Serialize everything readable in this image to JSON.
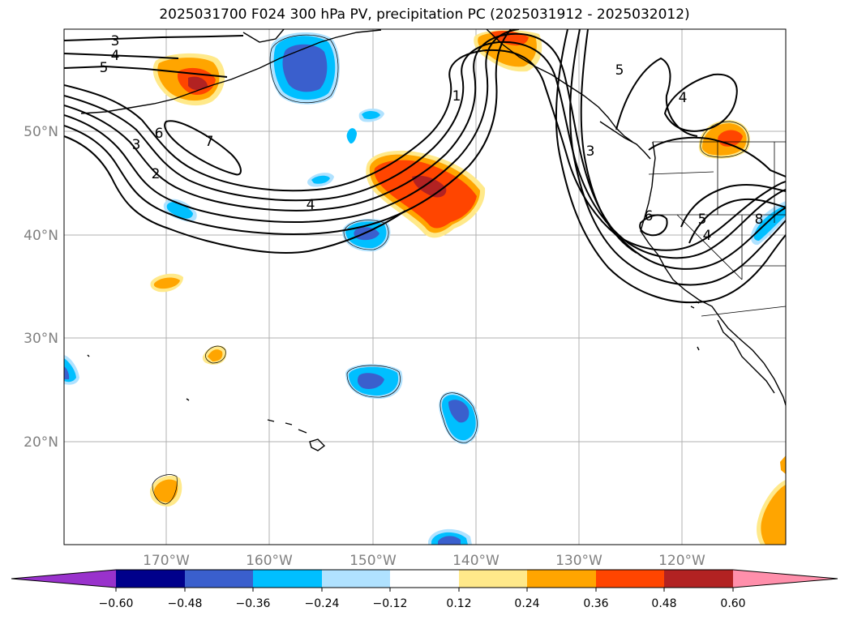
{
  "title": "2025031700 F024 300 hPa PV, precipitation PC (2025031912 - 2025032012)",
  "map": {
    "lat_labels": [
      {
        "lat": 50,
        "text": "50°N"
      },
      {
        "lat": 40,
        "text": "40°N"
      },
      {
        "lat": 30,
        "text": "30°N"
      },
      {
        "lat": 20,
        "text": "20°N"
      }
    ],
    "lon_labels": [
      {
        "lon": -170,
        "text": "170°W"
      },
      {
        "lon": -160,
        "text": "160°W"
      },
      {
        "lon": -150,
        "text": "150°W"
      },
      {
        "lon": -140,
        "text": "140°W"
      },
      {
        "lon": -130,
        "text": "130°W"
      },
      {
        "lon": -120,
        "text": "120°W"
      }
    ],
    "contour_labels": [
      "3",
      "4",
      "5",
      "6",
      "7",
      "2",
      "3",
      "4",
      "1",
      "3",
      "5",
      "4",
      "6",
      "5",
      "4",
      "8"
    ]
  },
  "colorbar": {
    "ticks": [
      "−0.60",
      "−0.48",
      "−0.36",
      "−0.24",
      "−0.12",
      "0.12",
      "0.24",
      "0.36",
      "0.48",
      "0.60"
    ],
    "colors": [
      "#9932cc",
      "#00008b",
      "#3a5fcd",
      "#00bfff",
      "#b0e2ff",
      "#ffffff",
      "#ffe98a",
      "#ffa500",
      "#ff4500",
      "#b22222",
      "#ff8fab"
    ]
  }
}
